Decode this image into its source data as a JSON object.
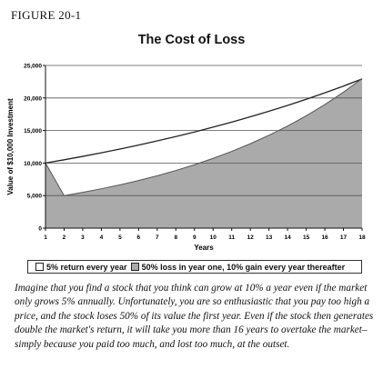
{
  "figure_label": "FIGURE 20-1",
  "chart_data": {
    "type": "area",
    "title": "The Cost of Loss",
    "xlabel": "Years",
    "ylabel": "Value of $10,000 Investment",
    "xlim": [
      1,
      18
    ],
    "ylim": [
      0,
      25000
    ],
    "x_ticks": [
      "1",
      "2",
      "3",
      "4",
      "5",
      "6",
      "7",
      "8",
      "9",
      "10",
      "11",
      "12",
      "13",
      "14",
      "15",
      "16",
      "17",
      "18"
    ],
    "y_ticks": [
      "0",
      "5,000",
      "10,000",
      "15,000",
      "20,000",
      "25,000"
    ],
    "legend_placement": "bottom",
    "series": [
      {
        "name": "5% return every year",
        "x": [
          1,
          2,
          3,
          4,
          5,
          6,
          7,
          8,
          9,
          10,
          11,
          12,
          13,
          14,
          15,
          16,
          17,
          18
        ],
        "values": [
          10000,
          10500,
          11025,
          11576,
          12155,
          12763,
          13401,
          14071,
          14775,
          15513,
          16289,
          17103,
          17959,
          18856,
          19799,
          20789,
          21829,
          22920
        ],
        "color": "#ffffff"
      },
      {
        "name": "50% loss in year one, 10% gain every year thereafter",
        "x": [
          1,
          2,
          3,
          4,
          5,
          6,
          7,
          8,
          9,
          10,
          11,
          12,
          13,
          14,
          15,
          16,
          17,
          18
        ],
        "values": [
          10000,
          5000,
          5500,
          6050,
          6655,
          7321,
          8053,
          8858,
          9744,
          10718,
          11790,
          12969,
          14266,
          15692,
          17261,
          18987,
          20886,
          22975
        ],
        "color": "#aaaaaa"
      }
    ]
  },
  "caption": "Imagine that you find a stock that you think can grow at 10% a year even if the market only grows 5% annually. Unfortunately, you are so enthusiastic that you pay too high a price, and the stock loses 50% of its value the first year. Even if the stock then generates double the market's return, it will take you more than 16 years to overtake the market–simply because you paid too much, and lost too much, at the outset."
}
